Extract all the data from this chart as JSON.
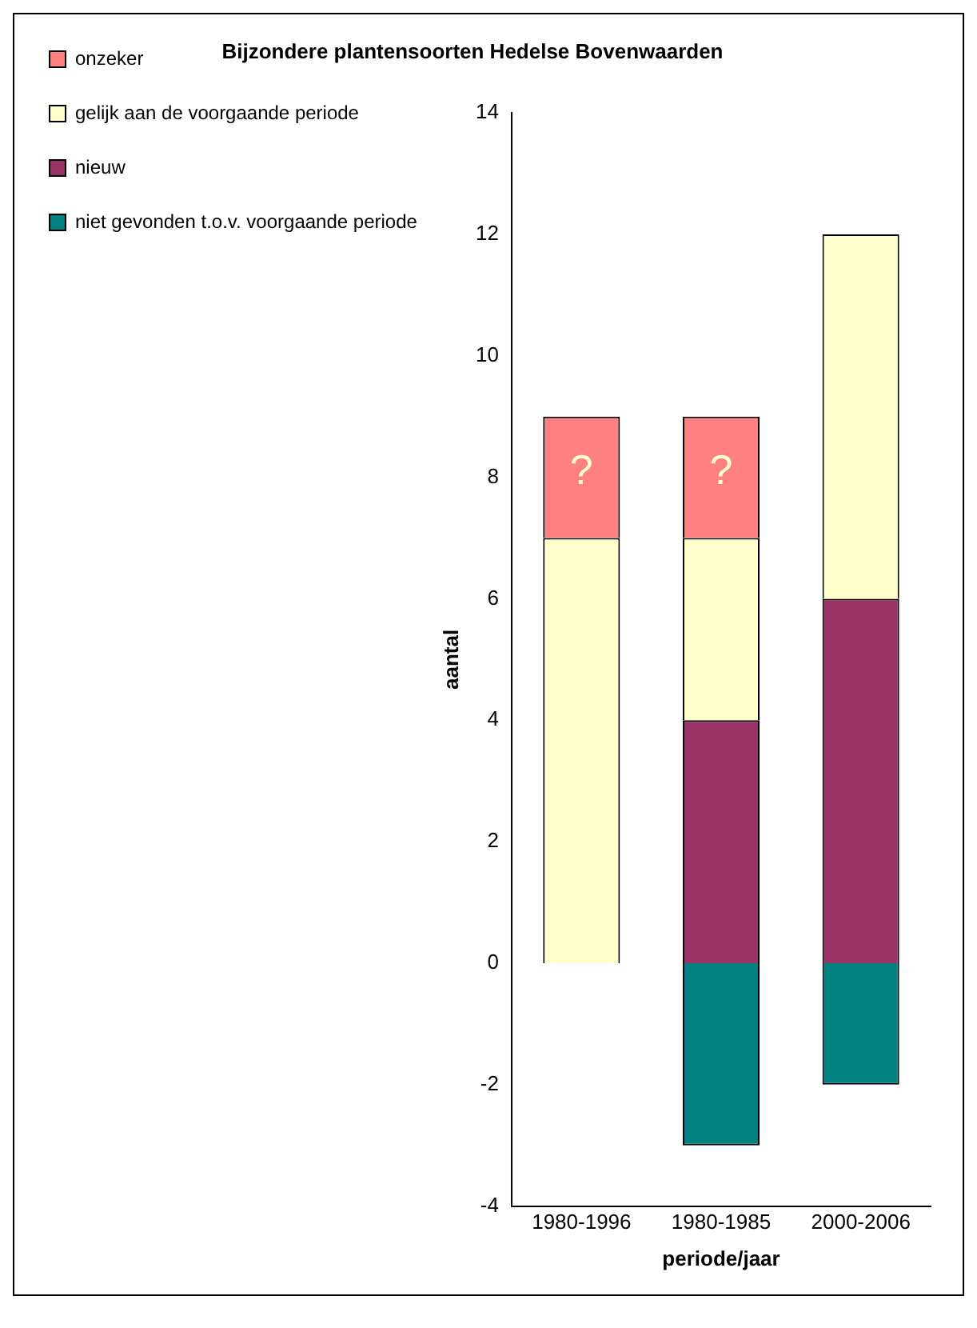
{
  "chart_data": {
    "type": "bar",
    "title": "Bijzondere plantensoorten Hedelse Bovenwaarden",
    "xlabel": "periode/jaar",
    "ylabel": "aantal",
    "categories": [
      "1980-1996",
      "1980-1985",
      "2000-2006"
    ],
    "stacked": true,
    "series": [
      {
        "name": "niet gevonden t.o.v. voorgaande periode",
        "color": "#008080",
        "values": [
          null,
          -3,
          -2
        ]
      },
      {
        "name": "nieuw",
        "color": "#993366",
        "values": [
          null,
          4,
          6
        ]
      },
      {
        "name": "gelijk aan de voorgaande periode",
        "color": "#ffffcc",
        "values": [
          7,
          3,
          6
        ]
      },
      {
        "name": "onzeker",
        "color": "#ff8080",
        "values": [
          2,
          2,
          null
        ]
      }
    ],
    "ylim": [
      -4,
      14
    ],
    "yticks": [
      -4,
      -2,
      0,
      2,
      4,
      6,
      8,
      10,
      12,
      14
    ],
    "grid": false,
    "legend": "left",
    "annotations": [
      {
        "text": "?",
        "x": "1980-1996",
        "y": 9
      },
      {
        "text": "?",
        "x": "1980-1985",
        "y": 9
      }
    ]
  }
}
